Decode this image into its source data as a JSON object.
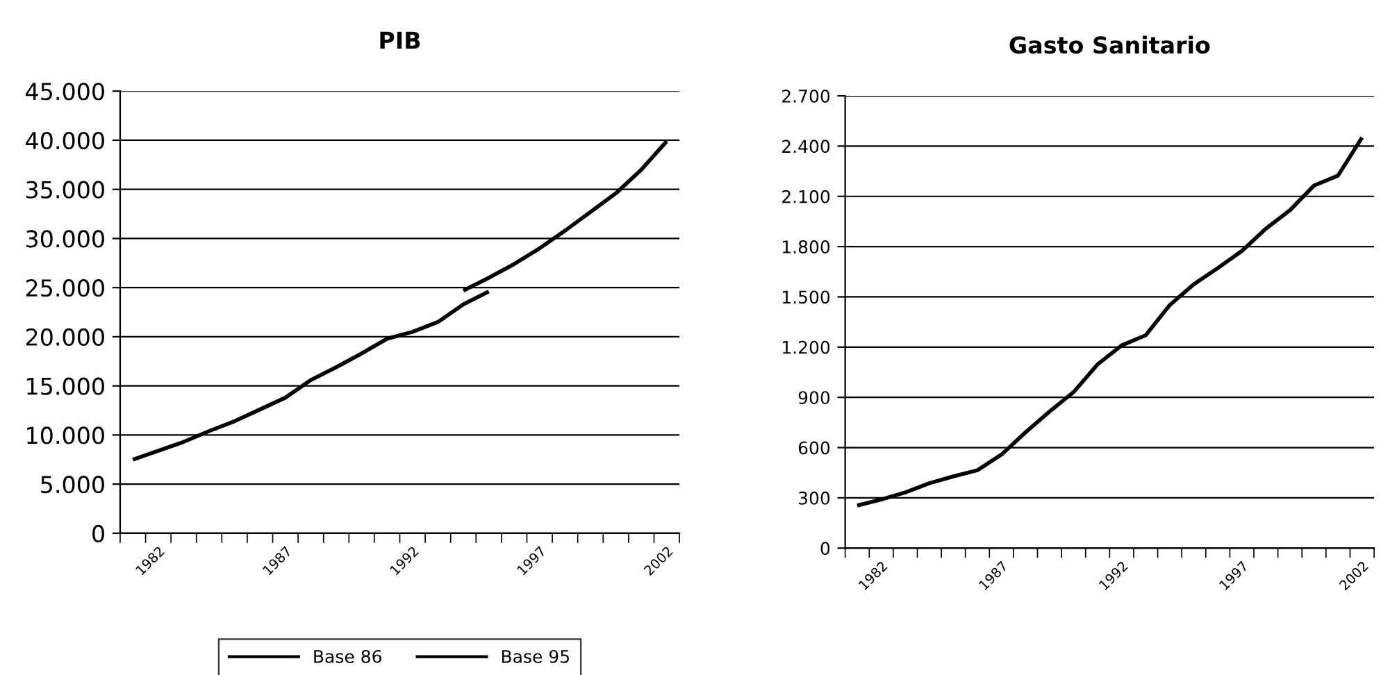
{
  "chart_data": [
    {
      "type": "line",
      "title": "PIB",
      "categories": [
        null,
        "1982",
        null,
        null,
        null,
        null,
        "1987",
        null,
        null,
        null,
        null,
        "1992",
        null,
        null,
        null,
        null,
        "1997",
        null,
        null,
        null,
        null,
        "2002"
      ],
      "series": [
        {
          "name": "Base 86",
          "color": "#000000",
          "values": [
            7500,
            8400,
            9300,
            10400,
            11400,
            12600,
            13800,
            15600,
            16900,
            18300,
            19800,
            20500,
            21500,
            23300,
            24600,
            null,
            null,
            null,
            null,
            null,
            null,
            null
          ]
        },
        {
          "name": "Base 95",
          "color": "#000000",
          "values": [
            null,
            null,
            null,
            null,
            null,
            null,
            null,
            null,
            null,
            null,
            null,
            null,
            null,
            24700,
            26000,
            27400,
            29000,
            30800,
            32700,
            34600,
            37000,
            39900
          ]
        }
      ],
      "ylim": [
        0,
        45000
      ],
      "yticks": [
        {
          "value": 0,
          "label": "0"
        },
        {
          "value": 5000,
          "label": "5.000"
        },
        {
          "value": 10000,
          "label": "10.000"
        },
        {
          "value": 15000,
          "label": "15.000"
        },
        {
          "value": 20000,
          "label": "20.000"
        },
        {
          "value": 25000,
          "label": "25.000"
        },
        {
          "value": 30000,
          "label": "30.000"
        },
        {
          "value": 35000,
          "label": "35.000"
        },
        {
          "value": 40000,
          "label": "40.000"
        },
        {
          "value": 45000,
          "label": "45.000"
        }
      ],
      "grid": "y",
      "legend": "bottom",
      "marker": "none",
      "line_style": "solid"
    },
    {
      "type": "line",
      "title": "Gasto Sanitario",
      "categories": [
        null,
        "1982",
        null,
        null,
        null,
        null,
        "1987",
        null,
        null,
        null,
        null,
        "1992",
        null,
        null,
        null,
        null,
        "1997",
        null,
        null,
        null,
        null,
        "2002"
      ],
      "series": [
        {
          "color": "#000000",
          "values": [
            254,
            290,
            332,
            387,
            428,
            465,
            558,
            691,
            815,
            931,
            1097,
            1210,
            1271,
            1451,
            1575,
            1672,
            1774,
            1907,
            2017,
            2164,
            2224,
            2451
          ]
        }
      ],
      "ylim": [
        0,
        2700
      ],
      "yticks": [
        {
          "value": 0,
          "label": "0"
        },
        {
          "value": 300,
          "label": "300"
        },
        {
          "value": 600,
          "label": "600"
        },
        {
          "value": 900,
          "label": "900"
        },
        {
          "value": 1200,
          "label": "1.200"
        },
        {
          "value": 1500,
          "label": "1.500"
        },
        {
          "value": 1800,
          "label": "1.800"
        },
        {
          "value": 2100,
          "label": "2.100"
        },
        {
          "value": 2400,
          "label": "2.400"
        },
        {
          "value": 2700,
          "label": "2.700"
        }
      ],
      "grid": "y",
      "legend": false,
      "marker": "none",
      "line_style": "solid"
    }
  ]
}
